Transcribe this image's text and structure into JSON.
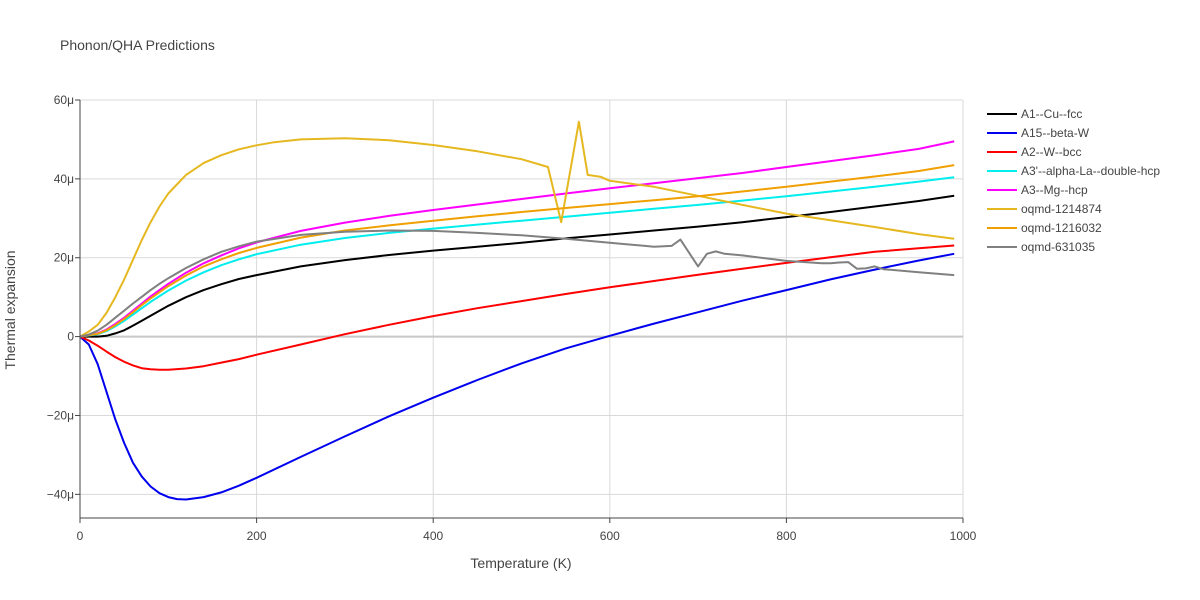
{
  "chart_data": {
    "type": "line",
    "title": "Phonon/QHA Predictions",
    "xlabel": "Temperature (K)",
    "ylabel": "Thermal expansion",
    "xlim": [
      0,
      1000
    ],
    "ylim": [
      -46,
      60
    ],
    "y_unit_suffix": "μ",
    "xticks": [
      0,
      200,
      400,
      600,
      800,
      1000
    ],
    "xtick_labels": [
      "0",
      "200",
      "400",
      "600",
      "800",
      "1000"
    ],
    "yticks": [
      -40,
      -20,
      0,
      20,
      40,
      60
    ],
    "ytick_labels": [
      "−40μ",
      "−20μ",
      "0",
      "20μ",
      "40μ",
      "60μ"
    ],
    "grid": true,
    "legend_position": "right",
    "series": [
      {
        "name": "A1--Cu--fcc",
        "color": "#000000",
        "points": [
          [
            0,
            0
          ],
          [
            20,
            0
          ],
          [
            30,
            0.2
          ],
          [
            40,
            0.8
          ],
          [
            50,
            1.6
          ],
          [
            60,
            2.8
          ],
          [
            70,
            4.0
          ],
          [
            80,
            5.3
          ],
          [
            100,
            7.8
          ],
          [
            120,
            10.0
          ],
          [
            140,
            11.8
          ],
          [
            160,
            13.3
          ],
          [
            180,
            14.6
          ],
          [
            200,
            15.6
          ],
          [
            250,
            17.8
          ],
          [
            300,
            19.4
          ],
          [
            350,
            20.7
          ],
          [
            400,
            21.8
          ],
          [
            450,
            22.8
          ],
          [
            500,
            23.8
          ],
          [
            550,
            24.9
          ],
          [
            600,
            25.9
          ],
          [
            650,
            26.9
          ],
          [
            700,
            27.9
          ],
          [
            750,
            29.0
          ],
          [
            800,
            30.3
          ],
          [
            850,
            31.6
          ],
          [
            900,
            33.0
          ],
          [
            950,
            34.4
          ],
          [
            990,
            35.7
          ]
        ]
      },
      {
        "name": "A15--beta-W",
        "color": "#0000ee",
        "points": [
          [
            0,
            0
          ],
          [
            10,
            -2
          ],
          [
            20,
            -7
          ],
          [
            30,
            -14
          ],
          [
            40,
            -21
          ],
          [
            50,
            -27
          ],
          [
            60,
            -32
          ],
          [
            70,
            -35.5
          ],
          [
            80,
            -38
          ],
          [
            90,
            -39.7
          ],
          [
            100,
            -40.7
          ],
          [
            110,
            -41.2
          ],
          [
            120,
            -41.3
          ],
          [
            140,
            -40.7
          ],
          [
            160,
            -39.5
          ],
          [
            180,
            -37.8
          ],
          [
            200,
            -35.8
          ],
          [
            250,
            -30.5
          ],
          [
            300,
            -25.3
          ],
          [
            350,
            -20.2
          ],
          [
            400,
            -15.5
          ],
          [
            450,
            -11
          ],
          [
            500,
            -6.8
          ],
          [
            550,
            -3
          ],
          [
            600,
            0.2
          ],
          [
            650,
            3.3
          ],
          [
            700,
            6.2
          ],
          [
            750,
            9.1
          ],
          [
            800,
            11.8
          ],
          [
            850,
            14.5
          ],
          [
            900,
            17
          ],
          [
            950,
            19.3
          ],
          [
            990,
            21
          ]
        ]
      },
      {
        "name": "A2--W--bcc",
        "color": "#ff0000",
        "points": [
          [
            0,
            0
          ],
          [
            10,
            -1
          ],
          [
            20,
            -2.3
          ],
          [
            30,
            -3.8
          ],
          [
            40,
            -5.2
          ],
          [
            50,
            -6.4
          ],
          [
            60,
            -7.3
          ],
          [
            70,
            -8.0
          ],
          [
            80,
            -8.3
          ],
          [
            90,
            -8.4
          ],
          [
            100,
            -8.4
          ],
          [
            120,
            -8.1
          ],
          [
            140,
            -7.5
          ],
          [
            160,
            -6.6
          ],
          [
            180,
            -5.7
          ],
          [
            200,
            -4.6
          ],
          [
            250,
            -2.0
          ],
          [
            300,
            0.6
          ],
          [
            350,
            3.0
          ],
          [
            400,
            5.2
          ],
          [
            450,
            7.2
          ],
          [
            500,
            9.0
          ],
          [
            550,
            10.8
          ],
          [
            600,
            12.5
          ],
          [
            650,
            14.1
          ],
          [
            700,
            15.7
          ],
          [
            750,
            17.2
          ],
          [
            800,
            18.7
          ],
          [
            850,
            20.1
          ],
          [
            900,
            21.5
          ],
          [
            950,
            22.4
          ],
          [
            990,
            23.1
          ]
        ]
      },
      {
        "name": "A3'--alpha-La--double-hcp",
        "color": "#00eeee",
        "points": [
          [
            0,
            0
          ],
          [
            20,
            0.6
          ],
          [
            30,
            1.4
          ],
          [
            40,
            2.6
          ],
          [
            50,
            4.0
          ],
          [
            60,
            5.6
          ],
          [
            70,
            7.2
          ],
          [
            80,
            8.8
          ],
          [
            100,
            11.7
          ],
          [
            120,
            14.2
          ],
          [
            140,
            16.3
          ],
          [
            160,
            18.1
          ],
          [
            180,
            19.6
          ],
          [
            200,
            20.9
          ],
          [
            250,
            23.3
          ],
          [
            300,
            25.0
          ],
          [
            350,
            26.3
          ],
          [
            400,
            27.4
          ],
          [
            450,
            28.4
          ],
          [
            500,
            29.4
          ],
          [
            550,
            30.4
          ],
          [
            600,
            31.4
          ],
          [
            650,
            32.4
          ],
          [
            700,
            33.4
          ],
          [
            750,
            34.5
          ],
          [
            800,
            35.6
          ],
          [
            850,
            36.8
          ],
          [
            900,
            38.0
          ],
          [
            950,
            39.3
          ],
          [
            990,
            40.4
          ]
        ]
      },
      {
        "name": "A3--Mg--hcp",
        "color": "#ff00ff",
        "points": [
          [
            0,
            0
          ],
          [
            20,
            0.8
          ],
          [
            30,
            1.8
          ],
          [
            40,
            3.2
          ],
          [
            50,
            4.8
          ],
          [
            60,
            6.6
          ],
          [
            70,
            8.4
          ],
          [
            80,
            10.2
          ],
          [
            100,
            13.4
          ],
          [
            120,
            16.2
          ],
          [
            140,
            18.6
          ],
          [
            160,
            20.6
          ],
          [
            180,
            22.4
          ],
          [
            200,
            23.9
          ],
          [
            250,
            26.8
          ],
          [
            300,
            28.9
          ],
          [
            350,
            30.6
          ],
          [
            400,
            32.1
          ],
          [
            450,
            33.5
          ],
          [
            500,
            34.9
          ],
          [
            550,
            36.3
          ],
          [
            600,
            37.6
          ],
          [
            650,
            38.9
          ],
          [
            700,
            40.2
          ],
          [
            750,
            41.5
          ],
          [
            800,
            43.0
          ],
          [
            850,
            44.5
          ],
          [
            900,
            46.0
          ],
          [
            950,
            47.6
          ],
          [
            990,
            49.5
          ]
        ]
      },
      {
        "name": "oqmd-1214874",
        "color": "#e6b820",
        "points": [
          [
            0,
            0
          ],
          [
            10,
            1.3
          ],
          [
            20,
            3.0
          ],
          [
            30,
            6.0
          ],
          [
            40,
            10.0
          ],
          [
            50,
            14.5
          ],
          [
            60,
            19.5
          ],
          [
            70,
            24.5
          ],
          [
            80,
            29.0
          ],
          [
            90,
            33.0
          ],
          [
            100,
            36.3
          ],
          [
            120,
            41.0
          ],
          [
            140,
            44.0
          ],
          [
            160,
            46.0
          ],
          [
            180,
            47.5
          ],
          [
            200,
            48.5
          ],
          [
            220,
            49.3
          ],
          [
            250,
            50.0
          ],
          [
            300,
            50.3
          ],
          [
            350,
            49.8
          ],
          [
            400,
            48.6
          ],
          [
            450,
            47.0
          ],
          [
            500,
            45.0
          ],
          [
            530,
            43.0
          ],
          [
            545,
            29.0
          ],
          [
            565,
            54.5
          ],
          [
            575,
            41.0
          ],
          [
            590,
            40.5
          ],
          [
            600,
            39.5
          ],
          [
            650,
            38.0
          ],
          [
            700,
            35.7
          ],
          [
            750,
            33.4
          ],
          [
            800,
            31.2
          ],
          [
            850,
            29.5
          ],
          [
            900,
            27.8
          ],
          [
            950,
            26.0
          ],
          [
            990,
            24.8
          ]
        ]
      },
      {
        "name": "oqmd-1216032",
        "color": "#f0a000",
        "points": [
          [
            0,
            0
          ],
          [
            20,
            0.7
          ],
          [
            30,
            1.6
          ],
          [
            40,
            2.9
          ],
          [
            50,
            4.5
          ],
          [
            60,
            6.2
          ],
          [
            70,
            8.0
          ],
          [
            80,
            9.7
          ],
          [
            100,
            12.8
          ],
          [
            120,
            15.5
          ],
          [
            140,
            17.8
          ],
          [
            160,
            19.6
          ],
          [
            180,
            21.2
          ],
          [
            200,
            22.5
          ],
          [
            250,
            25.1
          ],
          [
            300,
            26.9
          ],
          [
            350,
            28.2
          ],
          [
            400,
            29.4
          ],
          [
            450,
            30.5
          ],
          [
            500,
            31.6
          ],
          [
            550,
            32.6
          ],
          [
            600,
            33.6
          ],
          [
            650,
            34.6
          ],
          [
            700,
            35.6
          ],
          [
            750,
            36.8
          ],
          [
            800,
            38.0
          ],
          [
            850,
            39.3
          ],
          [
            900,
            40.6
          ],
          [
            950,
            42.0
          ],
          [
            990,
            43.5
          ]
        ]
      },
      {
        "name": "oqmd-631035",
        "color": "#808080",
        "points": [
          [
            0,
            0
          ],
          [
            10,
            0.5
          ],
          [
            20,
            1.5
          ],
          [
            30,
            3.0
          ],
          [
            40,
            4.8
          ],
          [
            50,
            6.6
          ],
          [
            60,
            8.4
          ],
          [
            70,
            10.1
          ],
          [
            80,
            11.8
          ],
          [
            90,
            13.4
          ],
          [
            100,
            14.8
          ],
          [
            120,
            17.4
          ],
          [
            140,
            19.6
          ],
          [
            160,
            21.5
          ],
          [
            180,
            22.9
          ],
          [
            200,
            24.1
          ],
          [
            250,
            25.8
          ],
          [
            300,
            26.6
          ],
          [
            350,
            26.9
          ],
          [
            400,
            26.8
          ],
          [
            450,
            26.3
          ],
          [
            500,
            25.7
          ],
          [
            550,
            24.8
          ],
          [
            600,
            23.8
          ],
          [
            640,
            23.0
          ],
          [
            650,
            22.8
          ],
          [
            670,
            23.0
          ],
          [
            680,
            24.6
          ],
          [
            700,
            17.8
          ],
          [
            710,
            21.0
          ],
          [
            720,
            21.6
          ],
          [
            730,
            21.0
          ],
          [
            750,
            20.6
          ],
          [
            800,
            19.2
          ],
          [
            840,
            18.6
          ],
          [
            850,
            18.6
          ],
          [
            860,
            18.8
          ],
          [
            870,
            18.9
          ],
          [
            880,
            17.2
          ],
          [
            890,
            17.3
          ],
          [
            900,
            17.8
          ],
          [
            910,
            17.1
          ],
          [
            950,
            16.3
          ],
          [
            990,
            15.6
          ]
        ]
      }
    ]
  }
}
